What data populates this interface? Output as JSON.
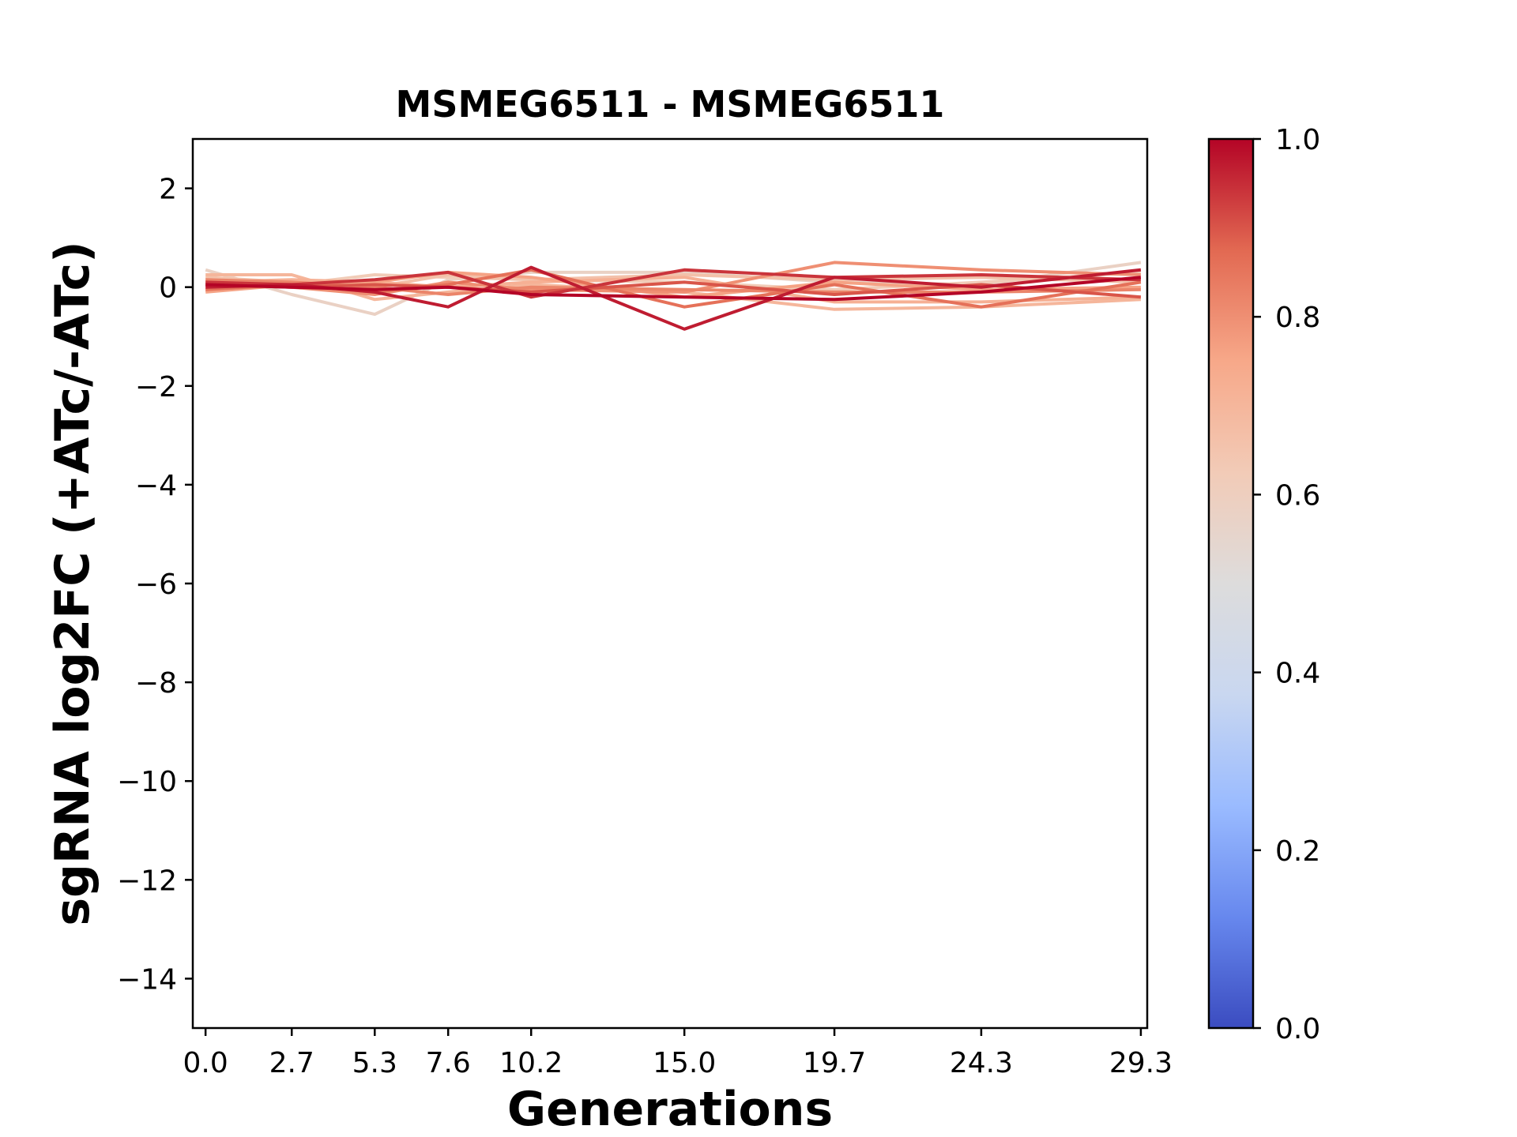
{
  "chart_data": {
    "type": "line",
    "title": "MSMEG6511 - MSMEG6511",
    "xlabel": "Generations",
    "ylabel": "sgRNA log2FC (+ATc/-ATc)",
    "x": [
      0.0,
      2.7,
      5.3,
      7.6,
      10.2,
      15.0,
      19.7,
      24.3,
      29.3
    ],
    "x_tick_labels": [
      "0.0",
      "2.7",
      "5.3",
      "7.6",
      "10.2",
      "15.0",
      "19.7",
      "24.3",
      "29.3"
    ],
    "xlim": [
      -0.4,
      29.5
    ],
    "ylim": [
      -15,
      3
    ],
    "y_ticks": [
      2,
      0,
      -2,
      -4,
      -6,
      -8,
      -10,
      -12,
      -14
    ],
    "y_tick_labels": [
      "2",
      "0",
      "−2",
      "−4",
      "−6",
      "−8",
      "−10",
      "−12",
      "−14"
    ],
    "grid": false,
    "colorbar": {
      "colormap": "coolwarm",
      "range": [
        0.0,
        1.0
      ],
      "tick_labels": [
        "1.0",
        "0.8",
        "0.6",
        "0.4",
        "0.2",
        "0.0"
      ],
      "tick_values": [
        1.0,
        0.8,
        0.6,
        0.4,
        0.2,
        0.0
      ],
      "stops": [
        "#3b4cc0",
        "#6788ee",
        "#9abbff",
        "#c9d7f0",
        "#dddcdc",
        "#f2cbb7",
        "#f7a889",
        "#e26952",
        "#b40426"
      ]
    },
    "series": [
      {
        "c": 0.58,
        "values": [
          0.35,
          -0.15,
          -0.55,
          0.15,
          0.3,
          0.3,
          0.1,
          0.05,
          0.5
        ]
      },
      {
        "c": 0.62,
        "values": [
          -0.05,
          0.05,
          0.25,
          0.2,
          0.15,
          0.1,
          -0.05,
          0.1,
          0.3
        ]
      },
      {
        "c": 0.66,
        "values": [
          0.2,
          0.1,
          0.0,
          0.25,
          0.15,
          0.25,
          0.15,
          0.2,
          0.1
        ]
      },
      {
        "c": 0.7,
        "values": [
          0.25,
          0.25,
          -0.25,
          -0.1,
          0.05,
          -0.1,
          -0.45,
          -0.4,
          -0.25
        ]
      },
      {
        "c": 0.72,
        "values": [
          0.1,
          0.15,
          0.1,
          0.0,
          0.1,
          0.2,
          -0.3,
          -0.3,
          -0.2
        ]
      },
      {
        "c": 0.76,
        "values": [
          -0.1,
          0.05,
          0.1,
          0.3,
          0.2,
          -0.2,
          0.1,
          -0.05,
          0.0
        ]
      },
      {
        "c": 0.8,
        "values": [
          0.05,
          0.0,
          -0.15,
          0.1,
          -0.05,
          -0.1,
          0.5,
          0.35,
          0.25
        ]
      },
      {
        "c": 0.82,
        "values": [
          0.15,
          0.1,
          0.0,
          -0.15,
          0.0,
          -0.05,
          -0.1,
          -0.1,
          -0.05
        ]
      },
      {
        "c": 0.86,
        "values": [
          -0.05,
          0.05,
          -0.1,
          0.05,
          0.35,
          -0.4,
          0.05,
          -0.4,
          0.1
        ]
      },
      {
        "c": 0.9,
        "values": [
          0.05,
          0.0,
          0.05,
          0.0,
          -0.1,
          0.1,
          -0.15,
          0.05,
          -0.2
        ]
      },
      {
        "c": 0.94,
        "values": [
          0.1,
          0.05,
          0.15,
          0.3,
          -0.2,
          0.35,
          0.2,
          0.25,
          0.15
        ]
      },
      {
        "c": 0.97,
        "values": [
          0.0,
          0.05,
          -0.1,
          -0.4,
          0.4,
          -0.85,
          0.2,
          0.0,
          0.35
        ]
      },
      {
        "c": 1.0,
        "values": [
          0.05,
          0.0,
          -0.05,
          0.0,
          -0.15,
          -0.2,
          -0.25,
          -0.1,
          0.2
        ]
      }
    ]
  }
}
